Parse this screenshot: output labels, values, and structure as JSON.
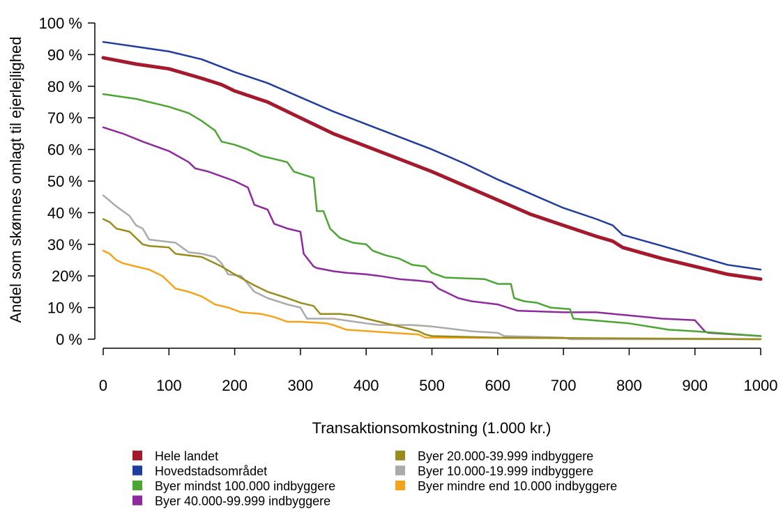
{
  "chart_data": {
    "type": "line",
    "title": "",
    "xlabel": "Transaktionsomkostning (1.000 kr.)",
    "ylabel": "Andel som skønnes omlagt til ejerlejlighed",
    "xlim": [
      0,
      1000
    ],
    "ylim": [
      0,
      100
    ],
    "x_ticks": [
      0,
      100,
      200,
      300,
      400,
      500,
      600,
      700,
      800,
      900,
      1000
    ],
    "x_tick_labels": [
      "0",
      "100",
      "200",
      "300",
      "400",
      "500",
      "600",
      "700",
      "800",
      "900",
      "1000"
    ],
    "y_ticks": [
      0,
      10,
      20,
      30,
      40,
      50,
      60,
      70,
      80,
      90,
      100
    ],
    "y_tick_labels": [
      "0 %",
      "10 %",
      "20%",
      "30 %",
      "40 %",
      "50 %",
      "60 %",
      "70 %",
      "80 %",
      "90 %",
      "100 %"
    ],
    "grid": false,
    "legend_position": "bottom",
    "series": [
      {
        "name": "Hele landet",
        "color": "#a5192d",
        "x": [
          0,
          50,
          100,
          150,
          180,
          200,
          250,
          300,
          350,
          400,
          450,
          500,
          550,
          600,
          650,
          700,
          750,
          775,
          790,
          850,
          900,
          950,
          1000
        ],
        "y": [
          89,
          87,
          85.5,
          82.5,
          80.5,
          78.5,
          75,
          70,
          65,
          61,
          57,
          53,
          48.5,
          44,
          39.5,
          36,
          32.5,
          31,
          29,
          25.5,
          23,
          20.5,
          19
        ]
      },
      {
        "name": "Hovedstadsområdet",
        "color": "#1f3c9f",
        "x": [
          0,
          50,
          100,
          150,
          200,
          250,
          300,
          350,
          400,
          450,
          500,
          550,
          600,
          650,
          700,
          750,
          775,
          790,
          850,
          900,
          950,
          1000
        ],
        "y": [
          94,
          92.5,
          91,
          88.5,
          84.5,
          81,
          76.5,
          72,
          68,
          64,
          60,
          55.5,
          50.5,
          46,
          41.5,
          38,
          36,
          33,
          29.5,
          26.5,
          23.5,
          22
        ]
      },
      {
        "name": "Byer mindst 100.000 indbyggere",
        "color": "#4aa532",
        "x": [
          0,
          50,
          100,
          130,
          150,
          170,
          180,
          200,
          220,
          240,
          260,
          280,
          290,
          320,
          325,
          335,
          345,
          360,
          380,
          400,
          410,
          430,
          450,
          470,
          490,
          500,
          520,
          580,
          600,
          620,
          625,
          640,
          660,
          680,
          710,
          715,
          800,
          860,
          900,
          1000
        ],
        "y": [
          77.5,
          76,
          73.5,
          71.5,
          69,
          66,
          62.5,
          61.5,
          60,
          58,
          57,
          56,
          53,
          51,
          40.5,
          40.5,
          35,
          32,
          30.5,
          30,
          28,
          26.5,
          25.5,
          23.5,
          23,
          21,
          19.5,
          19,
          17.5,
          17.5,
          13,
          12,
          11.5,
          10,
          9.5,
          6.5,
          5,
          3,
          2.5,
          1
        ]
      },
      {
        "name": "Byer 40.000-99.999 indbyggere",
        "color": "#8e2a9e",
        "x": [
          0,
          30,
          60,
          100,
          130,
          140,
          160,
          200,
          220,
          230,
          250,
          260,
          280,
          300,
          305,
          320,
          325,
          350,
          370,
          400,
          420,
          450,
          480,
          500,
          510,
          520,
          540,
          560,
          600,
          630,
          700,
          750,
          800,
          850,
          900,
          915,
          920,
          1000
        ],
        "y": [
          67,
          65,
          62.5,
          59.5,
          56,
          54,
          53,
          50,
          48,
          42.5,
          41,
          36.5,
          35,
          34,
          27,
          23,
          22.5,
          21.5,
          21,
          20.5,
          20,
          19,
          18.5,
          18,
          16,
          15,
          13,
          12,
          11,
          9,
          8.5,
          8.5,
          7.5,
          6.5,
          6,
          2.5,
          2,
          1
        ]
      },
      {
        "name": "Byer 20.000-39.999 indbyggere",
        "color": "#9a8c1c",
        "x": [
          0,
          10,
          20,
          40,
          60,
          70,
          100,
          110,
          150,
          170,
          180,
          200,
          230,
          250,
          280,
          300,
          320,
          330,
          360,
          380,
          400,
          420,
          450,
          480,
          490,
          500,
          600,
          1000
        ],
        "y": [
          38,
          37,
          35,
          34,
          30,
          29.5,
          29,
          27,
          26,
          24,
          23,
          20.5,
          17,
          15,
          13,
          11.5,
          10.5,
          8,
          8,
          7.5,
          6.5,
          5.5,
          4,
          2.5,
          1.5,
          1,
          0.5,
          0
        ]
      },
      {
        "name": "Byer 10.000-19.999 indbyggere",
        "color": "#aaaaaa",
        "x": [
          0,
          20,
          40,
          50,
          60,
          70,
          90,
          110,
          120,
          130,
          150,
          170,
          180,
          190,
          210,
          230,
          250,
          280,
          300,
          310,
          350,
          400,
          420,
          440,
          470,
          500,
          560,
          600,
          610,
          700,
          710,
          1000
        ],
        "y": [
          45.5,
          42,
          39,
          36,
          35,
          31.5,
          31,
          30.5,
          29,
          27.5,
          27,
          26,
          24,
          20.5,
          20,
          15,
          13,
          11,
          10,
          6.5,
          6.5,
          5,
          4.5,
          4.5,
          4.5,
          4,
          2.5,
          2,
          1,
          0.5,
          0,
          0
        ]
      },
      {
        "name": "Byer mindre end 10.000 indbyggere",
        "color": "#f5a31b",
        "x": [
          0,
          10,
          20,
          30,
          50,
          70,
          90,
          110,
          130,
          150,
          170,
          190,
          210,
          240,
          260,
          280,
          300,
          340,
          350,
          370,
          440,
          480,
          490,
          1000
        ],
        "y": [
          28,
          27,
          25,
          24,
          23,
          22,
          20,
          16,
          15,
          13.5,
          11,
          10,
          8.5,
          8,
          7,
          5.5,
          5.5,
          5,
          4.5,
          3,
          2,
          1.5,
          0.5,
          0
        ]
      }
    ]
  }
}
